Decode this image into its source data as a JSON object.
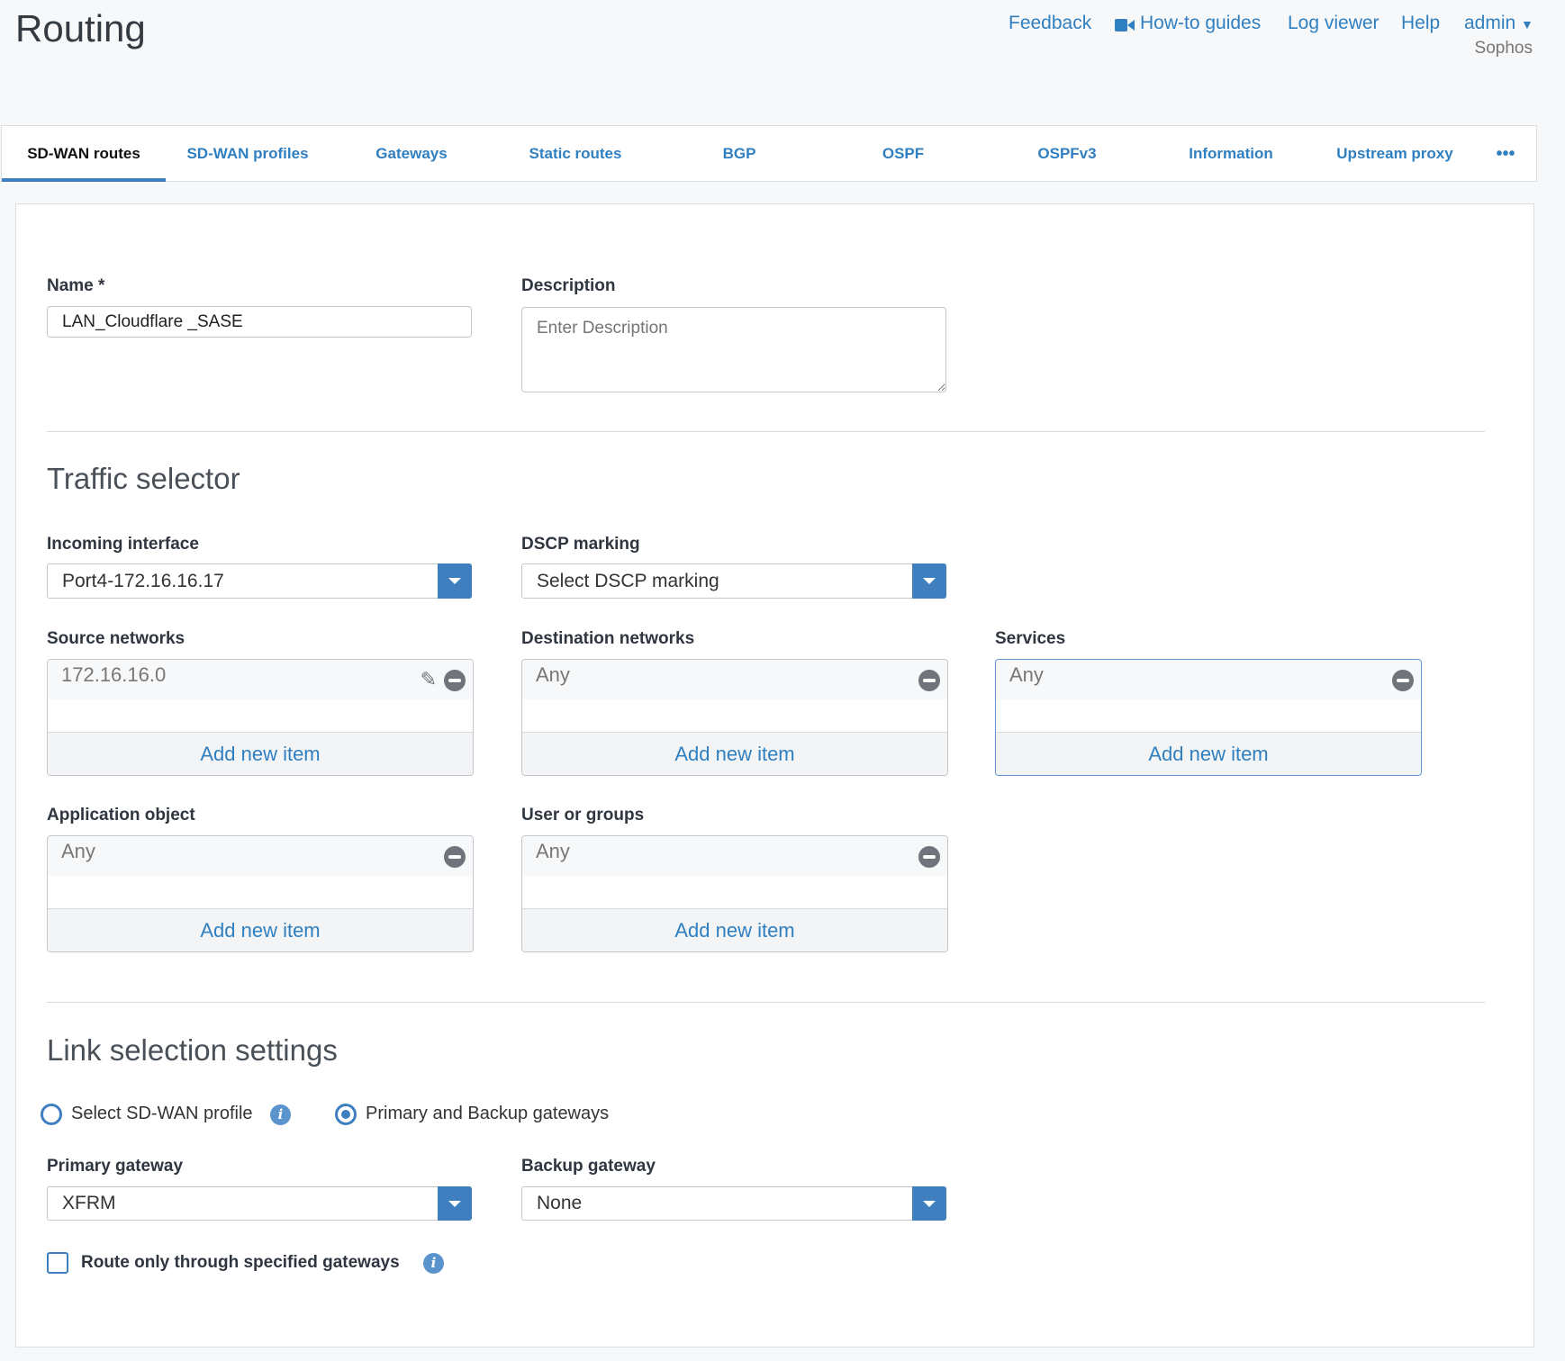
{
  "header": {
    "title": "Routing",
    "links": [
      "Feedback",
      "How-to guides",
      "Log viewer",
      "Help"
    ],
    "user": "admin",
    "org": "Sophos"
  },
  "tabs": [
    "SD-WAN routes",
    "SD-WAN profiles",
    "Gateways",
    "Static routes",
    "BGP",
    "OSPF",
    "OSPFv3",
    "Information",
    "Upstream proxy"
  ],
  "more_label": "•••",
  "form": {
    "name_label": "Name *",
    "name_value": "LAN_Cloudflare _SASE",
    "description_label": "Description",
    "description_placeholder": "Enter Description",
    "traffic_heading": "Traffic selector",
    "incoming_label": "Incoming interface",
    "incoming_value": "Port4-172.16.16.17",
    "dscp_label": "DSCP marking",
    "dscp_value": "Select DSCP marking",
    "source_label": "Source networks",
    "source_item": "172.16.16.0",
    "dest_label": "Destination networks",
    "dest_item": "Any",
    "services_label": "Services",
    "services_item": "Any",
    "app_label": "Application object",
    "app_item": "Any",
    "users_label": "User or groups",
    "users_item": "Any",
    "add_label": "Add new item",
    "link_heading": "Link selection settings",
    "radio_profile": "Select SD-WAN profile",
    "radio_gateways": "Primary and Backup gateways",
    "primary_label": "Primary gateway",
    "primary_value": "XFRM",
    "backup_label": "Backup gateway",
    "backup_value": "None",
    "route_only_label": "Route only through specified gateways",
    "info_glyph": "i"
  },
  "colors": {
    "accent": "#3f7fc0",
    "link": "#2f7fc1"
  }
}
